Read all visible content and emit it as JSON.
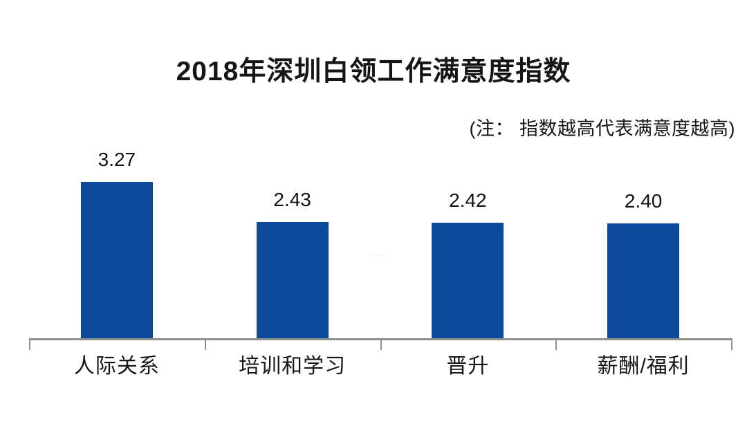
{
  "chart_data": {
    "type": "bar",
    "title": "2018年深圳白领工作满意度指数",
    "note": "(注： 指数越高代表满意度越高)",
    "categories": [
      "人际关系",
      "培训和学习",
      "晋升",
      "薪酬/福利"
    ],
    "values": [
      3.27,
      2.43,
      2.42,
      2.4
    ],
    "value_labels": [
      "3.27",
      "2.43",
      "2.42",
      "2.40"
    ],
    "xlabel": "",
    "ylabel": "",
    "ylim": [
      0,
      3.5
    ],
    "grid": false,
    "legend": false,
    "bar_color": "#0d4a9c",
    "axis_color": "#8f8f8f",
    "text_color": "#161616"
  },
  "watermark": {
    "text": "·····"
  }
}
